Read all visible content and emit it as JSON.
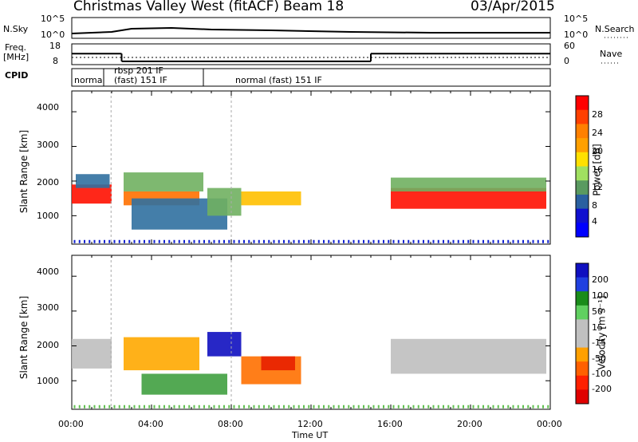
{
  "header": {
    "radar": "Christmas Valley West (fitACF)",
    "beam": "Beam 18",
    "date": "03/Apr/2015"
  },
  "nsky": {
    "label": "N.Sky",
    "left_ticks": [
      "10^5",
      "10^0"
    ],
    "right_ticks": [
      "10^5",
      "10^0"
    ],
    "right_label": "N.Search"
  },
  "freq": {
    "label_line1": "Freq.",
    "label_line2": "[MHz]",
    "left_ticks": [
      "18",
      "8"
    ],
    "right_ticks": [
      "60",
      "0"
    ],
    "right_label": "Nave",
    "values_mhz": [
      {
        "t_start": 0.0,
        "t_end": 2.5,
        "freq": 13.3
      },
      {
        "t_start": 2.5,
        "t_end": 15.0,
        "freq": 9.6
      },
      {
        "t_start": 15.0,
        "t_end": 24.0,
        "freq": 13.3
      }
    ]
  },
  "cpid": {
    "label": "CPID",
    "segments": [
      {
        "t_start": 0.0,
        "t_end": 1.6,
        "line1": "normal",
        "line2": ""
      },
      {
        "t_start": 1.6,
        "t_end": 6.6,
        "line1": "rbsp 201 IF",
        "line2": "(fast) 151 IF"
      },
      {
        "t_start": 6.6,
        "t_end": 24.0,
        "line1": "normal (fast) 151 IF",
        "line2": ""
      }
    ]
  },
  "panels": {
    "ylabel": "Slant Range [km]",
    "yticks": [
      "4000",
      "3000",
      "2000",
      "1000"
    ],
    "xticks": [
      "00:00",
      "04:00",
      "08:00",
      "12:00",
      "16:00",
      "20:00",
      "00:00"
    ],
    "xlabel": "Time UT"
  },
  "power_bar": {
    "label": "Power [dB]",
    "ticks": [
      "28",
      "24",
      "20",
      "16",
      "12",
      "8",
      "4"
    ],
    "colors": [
      "#ff0000",
      "#ff4000",
      "#ff8000",
      "#ffa000",
      "#ffe000",
      "#a0e060",
      "#5a9a60",
      "#2a60a0",
      "#1010d0",
      "#0000ff"
    ]
  },
  "velocity_bar": {
    "label": "Velocity [m s⁻¹]",
    "ticks": [
      "200",
      "100",
      "50",
      "15",
      "-15",
      "-50",
      "-100",
      "-200"
    ],
    "colors": [
      "#1010c0",
      "#2040e0",
      "#1a8c1a",
      "#60d060",
      "#c0c0c0",
      "#c0c0c0",
      "#ffa000",
      "#ff6000",
      "#ff2000",
      "#e00000"
    ]
  },
  "chart_data": [
    {
      "type": "heatmap",
      "title": "Power",
      "xlabel": "Time UT",
      "ylabel": "Slant Range [km]",
      "xlim": [
        0,
        24
      ],
      "ylim": [
        180,
        4600
      ],
      "colorbar": {
        "label": "Power [dB]",
        "range": [
          0,
          30
        ]
      },
      "bands": [
        {
          "t_start": 0.0,
          "t_end": 2.0,
          "r_low": 1350,
          "r_high": 1900,
          "power": 26
        },
        {
          "t_start": 0.2,
          "t_end": 1.9,
          "r_low": 1800,
          "r_high": 2200,
          "power": 10
        },
        {
          "t_start": 2.6,
          "t_end": 6.4,
          "r_low": 1300,
          "r_high": 1700,
          "power": 22
        },
        {
          "t_start": 2.6,
          "t_end": 6.6,
          "r_low": 1700,
          "r_high": 2250,
          "power": 12
        },
        {
          "t_start": 3.0,
          "t_end": 7.8,
          "r_low": 600,
          "r_high": 1500,
          "power": 8
        },
        {
          "t_start": 6.8,
          "t_end": 8.5,
          "r_low": 1000,
          "r_high": 1800,
          "power": 14
        },
        {
          "t_start": 8.5,
          "t_end": 11.5,
          "r_low": 1300,
          "r_high": 1700,
          "power": 16
        },
        {
          "t_start": 16.0,
          "t_end": 23.8,
          "r_low": 1200,
          "r_high": 1800,
          "power": 26
        },
        {
          "t_start": 16.0,
          "t_end": 23.8,
          "r_low": 1700,
          "r_high": 2100,
          "power": 12
        }
      ]
    },
    {
      "type": "heatmap",
      "title": "Velocity",
      "xlabel": "Time UT",
      "ylabel": "Slant Range [km]",
      "xlim": [
        0,
        24
      ],
      "ylim": [
        180,
        4600
      ],
      "colorbar": {
        "label": "Velocity [m s⁻¹]",
        "range": [
          -200,
          200
        ]
      },
      "bands": [
        {
          "t_start": 0.0,
          "t_end": 2.0,
          "r_low": 1350,
          "r_high": 2200,
          "velocity": 0
        },
        {
          "t_start": 2.6,
          "t_end": 6.4,
          "r_low": 1300,
          "r_high": 2250,
          "velocity": -20
        },
        {
          "t_start": 3.5,
          "t_end": 7.8,
          "r_low": 600,
          "r_high": 1200,
          "velocity": 60
        },
        {
          "t_start": 6.8,
          "t_end": 8.5,
          "r_low": 1700,
          "r_high": 2400,
          "velocity": 180
        },
        {
          "t_start": 8.5,
          "t_end": 11.5,
          "r_low": 900,
          "r_high": 1700,
          "velocity": -80
        },
        {
          "t_start": 9.5,
          "t_end": 11.2,
          "r_low": 1300,
          "r_high": 1700,
          "velocity": -200
        },
        {
          "t_start": 16.0,
          "t_end": 23.8,
          "r_low": 1200,
          "r_high": 2200,
          "velocity": 0
        }
      ]
    }
  ]
}
